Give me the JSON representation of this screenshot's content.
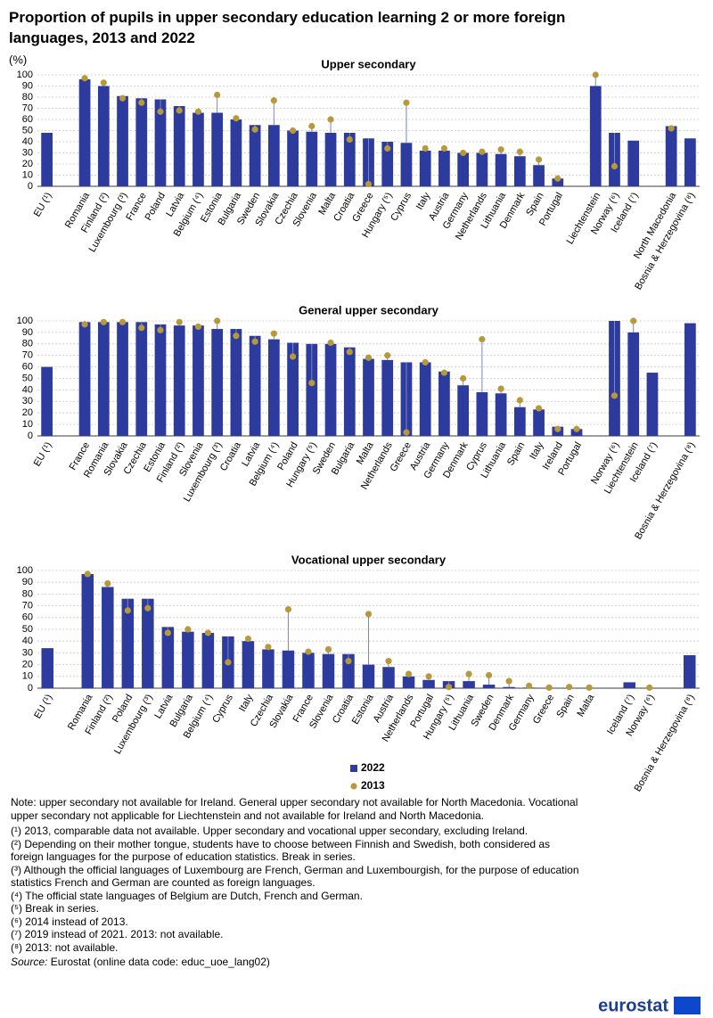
{
  "title": "Proportion of pupils in upper secondary education learning 2 or more foreign languages, 2013 and 2022",
  "y_unit": "(%)",
  "chart_data": [
    {
      "type": "bar",
      "title": "Upper secondary",
      "ylim": [
        0,
        100
      ],
      "yticks": [
        0,
        10,
        20,
        30,
        40,
        50,
        60,
        70,
        80,
        90,
        100
      ],
      "grid": true,
      "categories": [
        "EU (¹)",
        null,
        "Romania",
        "Finland (²)",
        "Luxembourg (³)",
        "France",
        "Poland",
        "Latvia",
        "Belgium (⁴)",
        "Estonia",
        "Bulgaria",
        "Sweden",
        "Slovakia",
        "Czechia",
        "Slovenia",
        "Malta",
        "Croatia",
        "Greece",
        "Hungary (⁵)",
        "Cyprus",
        "Italy",
        "Austria",
        "Germany",
        "Netherlands",
        "Lithuania",
        "Denmark",
        "Spain",
        "Portugal",
        null,
        "Liechtenstein",
        "Norway (⁶)",
        "Iceland (⁷)",
        null,
        "North Macedonia",
        "Bosnia & Herzegovina (⁸)"
      ],
      "series": [
        {
          "name": "2022",
          "mark": "bar",
          "color": "#2e3b9e",
          "values": [
            48,
            null,
            96,
            90,
            81,
            79,
            78,
            72,
            66,
            66,
            60,
            55,
            55,
            50,
            49,
            48,
            48,
            43,
            40,
            39,
            32,
            32,
            30,
            30,
            29,
            27,
            19,
            7,
            null,
            90,
            48,
            41,
            null,
            54,
            43
          ]
        },
        {
          "name": "2013",
          "mark": "dot",
          "color": "#b8993a",
          "values": [
            null,
            null,
            97,
            93,
            79,
            75,
            67,
            68,
            67,
            82,
            61,
            51,
            77,
            50,
            54,
            60,
            42,
            2,
            34,
            75,
            34,
            34,
            30,
            31,
            33,
            31,
            24,
            7,
            null,
            100,
            18,
            null,
            null,
            52,
            null
          ]
        }
      ]
    },
    {
      "type": "bar",
      "title": "General upper secondary",
      "ylim": [
        0,
        100
      ],
      "yticks": [
        0,
        10,
        20,
        30,
        40,
        50,
        60,
        70,
        80,
        90,
        100
      ],
      "grid": true,
      "categories": [
        "EU (¹)",
        null,
        "France",
        "Romania",
        "Slovakia",
        "Czechia",
        "Estonia",
        "Finland (²)",
        "Slovenia",
        "Luxembourg (³)",
        "Croatia",
        "Latvia",
        "Belgium (⁴)",
        "Poland",
        "Hungary (⁵)",
        "Sweden",
        "Bulgaria",
        "Malta",
        "Netherlands",
        "Greece",
        "Austria",
        "Germany",
        "Denmark",
        "Cyprus",
        "Lithuania",
        "Spain",
        "Italy",
        "Ireland",
        "Portugal",
        null,
        "Norway (⁶)",
        "Liechtenstein",
        "Iceland (⁷)",
        null,
        "Bosnia & Herzegovina (⁸)"
      ],
      "series": [
        {
          "name": "2022",
          "mark": "bar",
          "color": "#2e3b9e",
          "values": [
            60,
            null,
            99,
            99,
            99,
            99,
            97,
            96,
            96,
            93,
            93,
            87,
            84,
            81,
            80,
            80,
            77,
            67,
            66,
            64,
            64,
            56,
            44,
            38,
            37,
            25,
            23,
            8,
            6,
            null,
            100,
            90,
            55,
            null,
            98
          ]
        },
        {
          "name": "2013",
          "mark": "dot",
          "color": "#b8993a",
          "values": [
            null,
            null,
            97,
            99,
            99,
            94,
            92,
            99,
            95,
            100,
            87,
            82,
            89,
            69,
            46,
            81,
            73,
            68,
            70,
            3,
            64,
            55,
            50,
            84,
            41,
            31,
            24,
            6,
            6,
            null,
            35,
            100,
            null,
            null,
            null
          ]
        }
      ]
    },
    {
      "type": "bar",
      "title": "Vocational upper secondary",
      "ylim": [
        0,
        100
      ],
      "yticks": [
        0,
        10,
        20,
        30,
        40,
        50,
        60,
        70,
        80,
        90,
        100
      ],
      "grid": true,
      "categories": [
        "EU (¹)",
        null,
        "Romania",
        "Finland (²)",
        "Poland",
        "Luxembourg (³)",
        "Latvia",
        "Bulgaria",
        "Belgium (⁴)",
        "Cyprus",
        "Italy",
        "Czechia",
        "Slovakia",
        "France",
        "Slovenia",
        "Croatia",
        "Estonia",
        "Austria",
        "Netherlands",
        "Portugal",
        "Hungary (⁵)",
        "Lithuania",
        "Sweden",
        "Denmark",
        "Germany",
        "Greece",
        "Spain",
        "Malta",
        null,
        "Iceland (⁷)",
        "Norway (⁶)",
        null,
        "Bosnia & Herzegovina (⁸)"
      ],
      "series": [
        {
          "name": "2022",
          "mark": "bar",
          "color": "#2e3b9e",
          "values": [
            34,
            null,
            97,
            86,
            76,
            76,
            52,
            48,
            47,
            44,
            40,
            33,
            32,
            30,
            29,
            29,
            20,
            18,
            10,
            7,
            6,
            6,
            3,
            1,
            0.5,
            0.2,
            0.3,
            0,
            null,
            5,
            0,
            null,
            28
          ]
        },
        {
          "name": "2013",
          "mark": "dot",
          "color": "#b8993a",
          "values": [
            null,
            null,
            97,
            89,
            66,
            68,
            47,
            50,
            47,
            22,
            42,
            35,
            67,
            31,
            33,
            23,
            63,
            23,
            12,
            10,
            1,
            12,
            11,
            6,
            2,
            0.5,
            1,
            0.5,
            null,
            null,
            0.5,
            null,
            null
          ]
        }
      ]
    }
  ],
  "notes": [
    "Note: upper secondary not available for Ireland. General upper secondary not available for North Macedonia. Vocational upper secondary not applicable for Liechtenstein and not available for Ireland  and North Macedonia.",
    "(¹) 2013, comparable data not available. Upper secondary and vocational upper secondary, excluding Ireland.",
    "(²) Depending on their mother tongue, students have to choose between Finnish and Swedish, both considered as foreign languages for the purpose of education statistics. Break in series.",
    "(³) Although the official languages of Luxembourg are French, German and Luxembourgish, for the purpose of education statistics French and German are counted as foreign languages.",
    "(⁴) The official state languages of Belgium are Dutch, French and German.",
    "(⁵) Break in series.",
    "(⁶) 2014 instead of 2013.",
    "(⁷) 2019 instead of 2021. 2013: not available.",
    "(⁸) 2013: not available."
  ],
  "source": {
    "label": "Source:",
    "text": "Eurostat (online data code: educ_uoe_lang02)"
  },
  "logo": "eurostat"
}
